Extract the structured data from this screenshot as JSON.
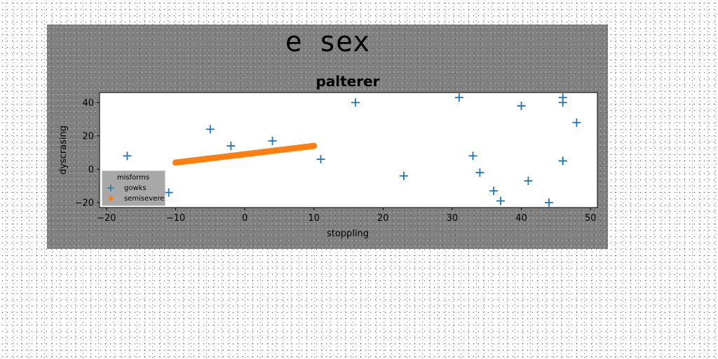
{
  "figure_title": "e sex",
  "chart_data": {
    "type": "scatter",
    "title": "palterer",
    "xlabel": "stoppling",
    "ylabel": "dyscrasing",
    "xlim": [
      -21,
      51
    ],
    "ylim": [
      -23,
      46
    ],
    "xticks": [
      -20,
      -10,
      0,
      10,
      20,
      30,
      40,
      50
    ],
    "yticks": [
      -20,
      0,
      20,
      40
    ],
    "grid": false,
    "legend": {
      "title": "misforms",
      "placement": "lower-left",
      "entries": [
        "gowks",
        "semisevere"
      ]
    },
    "series": [
      {
        "name": "gowks",
        "marker": "plus",
        "color": "#1f77b4",
        "points": [
          [
            -17,
            8
          ],
          [
            -11,
            -14
          ],
          [
            -5,
            24
          ],
          [
            -2,
            14
          ],
          [
            4,
            17
          ],
          [
            11,
            6
          ],
          [
            16,
            40
          ],
          [
            23,
            -4
          ],
          [
            31,
            43
          ],
          [
            33,
            8
          ],
          [
            34,
            -2
          ],
          [
            36,
            -13
          ],
          [
            37,
            -19
          ],
          [
            40,
            38
          ],
          [
            41,
            -7
          ],
          [
            44,
            -20
          ],
          [
            46,
            43
          ],
          [
            46,
            40
          ],
          [
            46,
            5
          ],
          [
            46,
            5
          ],
          [
            48,
            28
          ]
        ]
      },
      {
        "name": "semisevere",
        "marker": "circle",
        "color": "#ff7f0e",
        "line": {
          "x_start": -10,
          "x_end": 10,
          "y_start": 4,
          "y_end": 14,
          "n_points": 60
        }
      }
    ]
  }
}
